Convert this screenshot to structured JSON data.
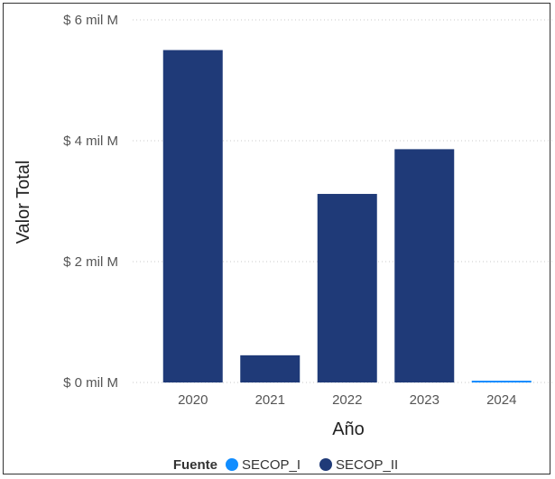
{
  "chart_data": {
    "type": "bar",
    "stacked": true,
    "categories": [
      "2020",
      "2021",
      "2022",
      "2023",
      "2024"
    ],
    "series": [
      {
        "name": "SECOP_I",
        "color": "#118DFF",
        "values": [
          0,
          0,
          0,
          0,
          0.03
        ]
      },
      {
        "name": "SECOP_II",
        "color": "#1F3A78",
        "values": [
          5.5,
          0.45,
          3.12,
          3.86,
          0
        ]
      }
    ],
    "xlabel": "Año",
    "ylabel": "Valor Total",
    "ylim": [
      0,
      6
    ],
    "yticks": [
      {
        "value": 0,
        "label": "$ 0 mil M"
      },
      {
        "value": 2,
        "label": "$ 2 mil M"
      },
      {
        "value": 4,
        "label": "$ 4 mil M"
      },
      {
        "value": 6,
        "label": "$ 6 mil M"
      }
    ],
    "grid": true,
    "legend": {
      "title": "Fuente",
      "placement": "bottom-center",
      "items": [
        "SECOP_I",
        "SECOP_II"
      ]
    }
  }
}
